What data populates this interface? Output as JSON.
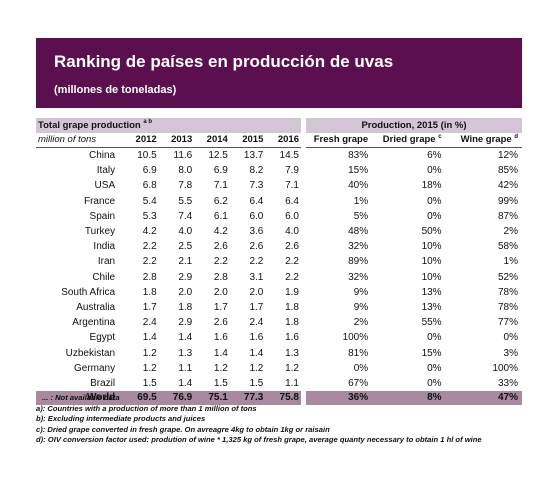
{
  "header": {
    "title": "Ranking de países en producción de uvas",
    "subtitle": "(millones de toneladas)"
  },
  "colors": {
    "banner": "#5b0f4e",
    "header_row": "#d4c5d6",
    "world_row": "#a8899f"
  },
  "production_table": {
    "title": "Total grape production",
    "title_sup": "a b",
    "unit": "million of tons",
    "years": [
      "2012",
      "2013",
      "2014",
      "2015",
      "2016"
    ],
    "rows": [
      {
        "country": "China",
        "values": [
          "10.5",
          "11.6",
          "12.5",
          "13.7",
          "14.5"
        ]
      },
      {
        "country": "Italy",
        "values": [
          "6.9",
          "8.0",
          "6.9",
          "8.2",
          "7.9"
        ]
      },
      {
        "country": "USA",
        "values": [
          "6.8",
          "7.8",
          "7.1",
          "7.3",
          "7.1"
        ]
      },
      {
        "country": "France",
        "values": [
          "5.4",
          "5.5",
          "6.2",
          "6.4",
          "6.4"
        ]
      },
      {
        "country": "Spain",
        "values": [
          "5.3",
          "7.4",
          "6.1",
          "6.0",
          "6.0"
        ]
      },
      {
        "country": "Turkey",
        "values": [
          "4.2",
          "4.0",
          "4.2",
          "3.6",
          "4.0"
        ]
      },
      {
        "country": "India",
        "values": [
          "2.2",
          "2.5",
          "2.6",
          "2.6",
          "2.6"
        ]
      },
      {
        "country": "Iran",
        "values": [
          "2.2",
          "2.1",
          "2.2",
          "2.2",
          "2.2"
        ]
      },
      {
        "country": "Chile",
        "values": [
          "2.8",
          "2.9",
          "2.8",
          "3.1",
          "2.2"
        ]
      },
      {
        "country": "South Africa",
        "values": [
          "1.8",
          "2.0",
          "2.0",
          "2.0",
          "1.9"
        ]
      },
      {
        "country": "Australia",
        "values": [
          "1.7",
          "1.8",
          "1.7",
          "1.7",
          "1.8"
        ]
      },
      {
        "country": "Argentina",
        "values": [
          "2.4",
          "2.9",
          "2.6",
          "2.4",
          "1.8"
        ]
      },
      {
        "country": "Egypt",
        "values": [
          "1.4",
          "1.4",
          "1.6",
          "1.6",
          "1.6"
        ]
      },
      {
        "country": "Uzbekistan",
        "values": [
          "1.2",
          "1.3",
          "1.4",
          "1.4",
          "1.3"
        ]
      },
      {
        "country": "Germany",
        "values": [
          "1.2",
          "1.1",
          "1.2",
          "1.2",
          "1.2"
        ]
      },
      {
        "country": "Brazil",
        "values": [
          "1.5",
          "1.4",
          "1.5",
          "1.5",
          "1.1"
        ]
      }
    ],
    "world": {
      "country": "World",
      "values": [
        "69.5",
        "76.9",
        "75.1",
        "77.3",
        "75.8"
      ]
    }
  },
  "share_table": {
    "title": "Production, 2015 (in %)",
    "columns": [
      {
        "label": "Fresh grape",
        "sup": ""
      },
      {
        "label": "Dried grape",
        "sup": "c"
      },
      {
        "label": "Wine grape",
        "sup": "d"
      }
    ],
    "rows": [
      [
        "83%",
        "6%",
        "12%"
      ],
      [
        "15%",
        "0%",
        "85%"
      ],
      [
        "40%",
        "18%",
        "42%"
      ],
      [
        "1%",
        "0%",
        "99%"
      ],
      [
        "5%",
        "0%",
        "87%"
      ],
      [
        "48%",
        "50%",
        "2%"
      ],
      [
        "32%",
        "10%",
        "58%"
      ],
      [
        "89%",
        "10%",
        "1%"
      ],
      [
        "32%",
        "10%",
        "52%"
      ],
      [
        "9%",
        "13%",
        "78%"
      ],
      [
        "9%",
        "13%",
        "78%"
      ],
      [
        "2%",
        "55%",
        "77%"
      ],
      [
        "100%",
        "0%",
        "0%"
      ],
      [
        "81%",
        "15%",
        "3%"
      ],
      [
        "0%",
        "0%",
        "100%"
      ],
      [
        "67%",
        "0%",
        "33%"
      ]
    ],
    "world": [
      "36%",
      "8%",
      "47%"
    ]
  },
  "notes": [
    "... : Not available data",
    "a): Countries with a production of more than 1 million of tons",
    "b): Excluding intermediate products and juices",
    "c): Dried grape converted in fresh grape. On avreagre 4kg to obtain 1kg or raisain",
    "d): OIV conversion factor used: prodution of wine * 1,325 kg of fresh grape, average quanty  necessary to obtain 1 hl of wine"
  ]
}
